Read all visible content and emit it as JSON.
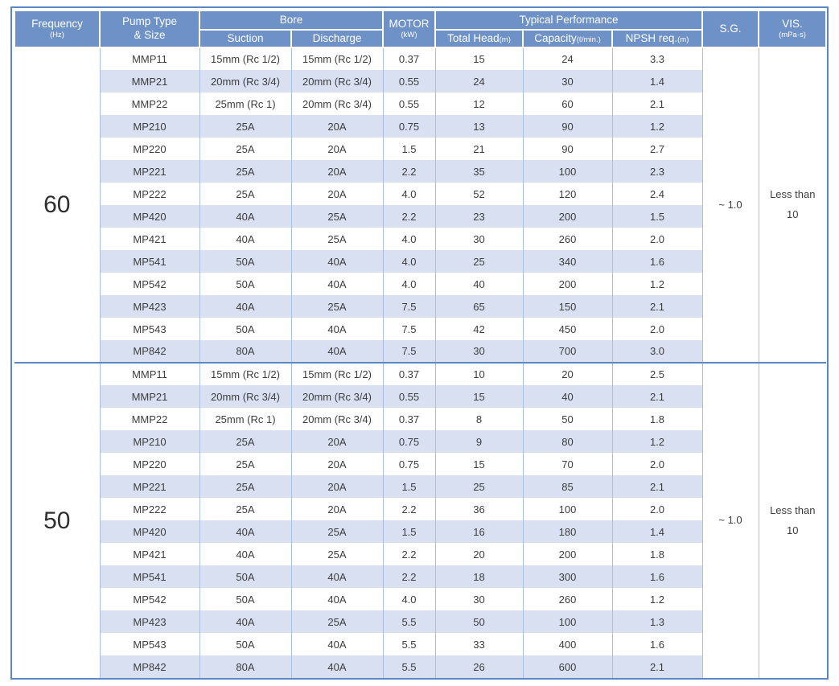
{
  "colors": {
    "border": "#5b86c4",
    "header-bg": "#6e91c8",
    "stripe": "#d9e0f2",
    "grid": "#a8bfe3"
  },
  "table": {
    "header": {
      "frequency": {
        "label": "Frequency",
        "unit": "(Hz)"
      },
      "pump_type": {
        "line1": "Pump Type",
        "line2": "& Size"
      },
      "bore": {
        "label": "Bore",
        "suction": "Suction",
        "discharge": "Discharge"
      },
      "motor": {
        "label": "MOTOR",
        "unit": "(kW)"
      },
      "performance": {
        "label": "Typical Performance",
        "total_head": "Total Head",
        "total_head_unit": "(m)",
        "capacity": "Capacity",
        "capacity_unit": "(ℓ/min.)",
        "npsh": "NPSH req.",
        "npsh_unit": "(m)"
      },
      "sg": "S.G.",
      "vis": {
        "label": "VIS.",
        "unit": "(mPa·s)"
      }
    },
    "sections": [
      {
        "frequency": "60",
        "sg": "~ 1.0",
        "vis_line1": "Less than",
        "vis_line2": "10",
        "rows": [
          {
            "model": "MMP11",
            "suction": "15mm (Rc 1/2)",
            "discharge": "15mm (Rc 1/2)",
            "motor": "0.37",
            "total_head": "15",
            "capacity": "24",
            "npsh": "3.3"
          },
          {
            "model": "MMP21",
            "suction": "20mm (Rc 3/4)",
            "discharge": "20mm (Rc 3/4)",
            "motor": "0.55",
            "total_head": "24",
            "capacity": "30",
            "npsh": "1.4"
          },
          {
            "model": "MMP22",
            "suction": "25mm (Rc 1)",
            "discharge": "20mm (Rc 3/4)",
            "motor": "0.55",
            "total_head": "12",
            "capacity": "60",
            "npsh": "2.1"
          },
          {
            "model": "MP210",
            "suction": "25A",
            "discharge": "20A",
            "motor": "0.75",
            "total_head": "13",
            "capacity": "90",
            "npsh": "1.2"
          },
          {
            "model": "MP220",
            "suction": "25A",
            "discharge": "20A",
            "motor": "1.5",
            "total_head": "21",
            "capacity": "90",
            "npsh": "2.7"
          },
          {
            "model": "MP221",
            "suction": "25A",
            "discharge": "20A",
            "motor": "2.2",
            "total_head": "35",
            "capacity": "100",
            "npsh": "2.3"
          },
          {
            "model": "MP222",
            "suction": "25A",
            "discharge": "20A",
            "motor": "4.0",
            "total_head": "52",
            "capacity": "120",
            "npsh": "2.4"
          },
          {
            "model": "MP420",
            "suction": "40A",
            "discharge": "25A",
            "motor": "2.2",
            "total_head": "23",
            "capacity": "200",
            "npsh": "1.5"
          },
          {
            "model": "MP421",
            "suction": "40A",
            "discharge": "25A",
            "motor": "4.0",
            "total_head": "30",
            "capacity": "260",
            "npsh": "2.0"
          },
          {
            "model": "MP541",
            "suction": "50A",
            "discharge": "40A",
            "motor": "4.0",
            "total_head": "25",
            "capacity": "340",
            "npsh": "1.6"
          },
          {
            "model": "MP542",
            "suction": "50A",
            "discharge": "40A",
            "motor": "4.0",
            "total_head": "40",
            "capacity": "200",
            "npsh": "1.2"
          },
          {
            "model": "MP423",
            "suction": "40A",
            "discharge": "25A",
            "motor": "7.5",
            "total_head": "65",
            "capacity": "150",
            "npsh": "2.1"
          },
          {
            "model": "MP543",
            "suction": "50A",
            "discharge": "40A",
            "motor": "7.5",
            "total_head": "42",
            "capacity": "450",
            "npsh": "2.0"
          },
          {
            "model": "MP842",
            "suction": "80A",
            "discharge": "40A",
            "motor": "7.5",
            "total_head": "30",
            "capacity": "700",
            "npsh": "3.0"
          }
        ]
      },
      {
        "frequency": "50",
        "sg": "~ 1.0",
        "vis_line1": "Less than",
        "vis_line2": "10",
        "rows": [
          {
            "model": "MMP11",
            "suction": "15mm (Rc 1/2)",
            "discharge": "15mm (Rc 1/2)",
            "motor": "0.37",
            "total_head": "10",
            "capacity": "20",
            "npsh": "2.5"
          },
          {
            "model": "MMP21",
            "suction": "20mm (Rc 3/4)",
            "discharge": "20mm (Rc 3/4)",
            "motor": "0.55",
            "total_head": "15",
            "capacity": "40",
            "npsh": "2.1"
          },
          {
            "model": "MMP22",
            "suction": "25mm (Rc 1)",
            "discharge": "20mm (Rc 3/4)",
            "motor": "0.37",
            "total_head": "8",
            "capacity": "50",
            "npsh": "1.8"
          },
          {
            "model": "MP210",
            "suction": "25A",
            "discharge": "20A",
            "motor": "0.75",
            "total_head": "9",
            "capacity": "80",
            "npsh": "1.2"
          },
          {
            "model": "MP220",
            "suction": "25A",
            "discharge": "20A",
            "motor": "0.75",
            "total_head": "15",
            "capacity": "70",
            "npsh": "2.0"
          },
          {
            "model": "MP221",
            "suction": "25A",
            "discharge": "20A",
            "motor": "1.5",
            "total_head": "25",
            "capacity": "85",
            "npsh": "2.1"
          },
          {
            "model": "MP222",
            "suction": "25A",
            "discharge": "20A",
            "motor": "2.2",
            "total_head": "36",
            "capacity": "100",
            "npsh": "2.0"
          },
          {
            "model": "MP420",
            "suction": "40A",
            "discharge": "25A",
            "motor": "1.5",
            "total_head": "16",
            "capacity": "180",
            "npsh": "1.4"
          },
          {
            "model": "MP421",
            "suction": "40A",
            "discharge": "25A",
            "motor": "2.2",
            "total_head": "20",
            "capacity": "200",
            "npsh": "1.8"
          },
          {
            "model": "MP541",
            "suction": "50A",
            "discharge": "40A",
            "motor": "2.2",
            "total_head": "18",
            "capacity": "300",
            "npsh": "1.6"
          },
          {
            "model": "MP542",
            "suction": "50A",
            "discharge": "40A",
            "motor": "4.0",
            "total_head": "30",
            "capacity": "260",
            "npsh": "1.2"
          },
          {
            "model": "MP423",
            "suction": "40A",
            "discharge": "25A",
            "motor": "5.5",
            "total_head": "50",
            "capacity": "100",
            "npsh": "1.3"
          },
          {
            "model": "MP543",
            "suction": "50A",
            "discharge": "40A",
            "motor": "5.5",
            "total_head": "33",
            "capacity": "400",
            "npsh": "1.6"
          },
          {
            "model": "MP842",
            "suction": "80A",
            "discharge": "40A",
            "motor": "5.5",
            "total_head": "26",
            "capacity": "600",
            "npsh": "2.1"
          }
        ]
      }
    ]
  }
}
